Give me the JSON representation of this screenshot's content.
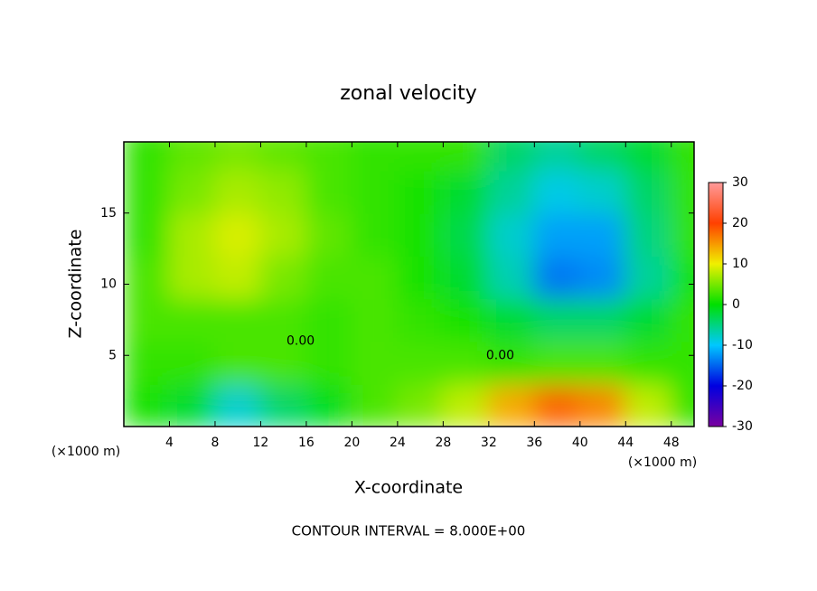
{
  "chart_data": {
    "type": "contour",
    "title": "zonal velocity",
    "xlabel": "X-coordinate",
    "ylabel": "Z-coordinate",
    "x_unit_labels": [
      "(×1000 m)",
      "(×1000 m)"
    ],
    "footer": "CONTOUR INTERVAL = 8.000E+00",
    "contour_labels": [
      "0.00",
      "0.00"
    ],
    "xlim": [
      0,
      50
    ],
    "ylim": [
      0,
      20
    ],
    "xticks": [
      4,
      8,
      12,
      16,
      20,
      24,
      28,
      32,
      36,
      40,
      44,
      48
    ],
    "yticks": [
      5,
      10,
      15
    ],
    "x": [
      2,
      6,
      10,
      14,
      18,
      22,
      26,
      30,
      34,
      38,
      42,
      46,
      50
    ],
    "z": [
      1.5,
      4.5,
      7.5,
      10.5,
      13.5,
      16.5,
      19.5
    ],
    "values": [
      [
        1,
        -2,
        -8,
        -4,
        -1,
        3,
        5,
        8,
        14,
        18,
        16,
        8,
        2
      ],
      [
        2,
        2,
        3,
        3,
        2,
        3,
        3,
        3,
        2,
        3,
        3,
        2,
        2
      ],
      [
        3,
        3,
        3,
        3,
        2,
        3,
        2,
        1,
        -2,
        -4,
        -4,
        -2,
        2
      ],
      [
        3,
        7,
        8,
        5,
        3,
        3,
        1,
        -2,
        -7,
        -14,
        -13,
        -6,
        1
      ],
      [
        2,
        7,
        9,
        7,
        4,
        2,
        1,
        -3,
        -8,
        -12,
        -12,
        -5,
        2
      ],
      [
        2,
        5,
        7,
        6,
        3,
        2,
        1,
        -2,
        -6,
        -9,
        -8,
        -4,
        2
      ],
      [
        2,
        4,
        5,
        4,
        3,
        2,
        2,
        2,
        -4,
        -6,
        -4,
        -2,
        2
      ]
    ],
    "colorbar": {
      "lim": [
        -30,
        30
      ],
      "ticks": [
        -30,
        -20,
        -10,
        0,
        10,
        20,
        30
      ],
      "colors": [
        "#7a00a0",
        "#0000e0",
        "#00c8ff",
        "#00e000",
        "#f0f000",
        "#ff4000",
        "#ff9a9a"
      ]
    }
  }
}
